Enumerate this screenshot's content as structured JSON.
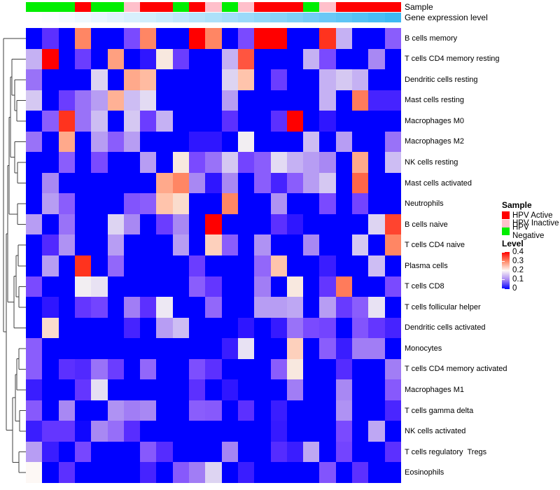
{
  "annotation_tracks": {
    "sample_label": "Sample",
    "gene_label": "Gene expression level",
    "sample_category_colors": {
      "HPV Active": "#FF0000",
      "HPV Inactive": "#FFC0CB",
      "HPV Negative": "#00EE00"
    },
    "sample_track": [
      "HPV Negative",
      "HPV Negative",
      "HPV Negative",
      "HPV Active",
      "HPV Negative",
      "HPV Negative",
      "HPV Inactive",
      "HPV Active",
      "HPV Active",
      "HPV Negative",
      "HPV Active",
      "HPV Inactive",
      "HPV Negative",
      "HPV Inactive",
      "HPV Active",
      "HPV Active",
      "HPV Active",
      "HPV Negative",
      "HPV Inactive",
      "HPV Active",
      "HPV Active",
      "HPV Active",
      "HPV Active"
    ],
    "gene_gradient": {
      "low_color": "#FEFEFF",
      "high_color": "#3EB9F3",
      "direction": "left-low-to-right-high"
    }
  },
  "legend": {
    "sample": {
      "title": "Sample",
      "entries": [
        {
          "label": "HPV Active",
          "color": "#FF0000"
        },
        {
          "label": "HPV Inactive",
          "color": "#FFC0CB"
        },
        {
          "label": "HPV Negative",
          "color": "#00EE00"
        }
      ]
    },
    "level": {
      "title": "Level",
      "ticks": [
        "0.4",
        "0.3",
        "0.2",
        "0.1",
        "0"
      ],
      "tick_values": [
        0.4,
        0.3,
        0.2,
        0.1,
        0
      ],
      "gradient_top_to_bottom": [
        "#FF0000",
        "#FF8866",
        "#FDF8F5",
        "#A888F3",
        "#0000FF"
      ]
    }
  },
  "chart_data": {
    "type": "heatmap",
    "title": "",
    "rows": [
      "B cells memory",
      "T cells CD4 memory resting",
      "Dendritic cells resting",
      "Mast cells resting",
      "Macrophages M0",
      "Macrophages M2",
      "NK cells resting",
      "Mast cells activated",
      "Neutrophils",
      "B cells naive",
      "T cells CD4 naive",
      "Plasma cells",
      "T cells CD8",
      "T cells follicular helper",
      "Dendritic cells activated",
      "Monocytes",
      "T cells CD4 memory activated",
      "Macrophages M1",
      "T cells gamma delta",
      "NK cells activated",
      "T cells regulatory  Tregs",
      "Eosinophils"
    ],
    "n_columns": 23,
    "column_labels_shown": false,
    "value_range": [
      0,
      0.4
    ],
    "values": [
      [
        0,
        0.05,
        0,
        0.3,
        0,
        0,
        0.07,
        0.3,
        0,
        0,
        0.4,
        0.3,
        0,
        0.07,
        0.4,
        0.4,
        0,
        0,
        0.37,
        0.12,
        0,
        0,
        0.08
      ],
      [
        0.12,
        0.4,
        0,
        0.06,
        0,
        0.28,
        0,
        0.03,
        0.21,
        0.06,
        0,
        0,
        0.12,
        0.35,
        0,
        0,
        0,
        0.12,
        0.07,
        0,
        0,
        0.1,
        0
      ],
      [
        0.09,
        0,
        0,
        0,
        0.15,
        0,
        0.27,
        0.25,
        0,
        0,
        0,
        0,
        0.15,
        0.24,
        0,
        0.06,
        0,
        0,
        0.12,
        0.14,
        0.12,
        0,
        0
      ],
      [
        0.14,
        0,
        0.06,
        0.09,
        0.11,
        0.26,
        0.13,
        0.16,
        0,
        0,
        0,
        0,
        0.11,
        0,
        0,
        0,
        0,
        0,
        0.12,
        0,
        0.31,
        0.04,
        0.04
      ],
      [
        0,
        0.08,
        0.37,
        0.09,
        0.13,
        0,
        0.14,
        0.06,
        0.12,
        0,
        0,
        0,
        0.05,
        0,
        0,
        0.05,
        0.4,
        0,
        0.03,
        0,
        0,
        0,
        0
      ],
      [
        0.09,
        0,
        0.27,
        0,
        0.11,
        0.08,
        0.11,
        0,
        0,
        0,
        0.03,
        0.03,
        0,
        0.19,
        0,
        0,
        0,
        0.13,
        0,
        0.11,
        0,
        0,
        0.09
      ],
      [
        0,
        0,
        0.08,
        0,
        0.07,
        0,
        0,
        0.11,
        0,
        0.21,
        0.07,
        0.09,
        0.14,
        0.065,
        0.08,
        0.16,
        0.12,
        0.11,
        0.1,
        0,
        0.27,
        0,
        0.13
      ],
      [
        0,
        0.1,
        0,
        0,
        0,
        0,
        0,
        0,
        0.27,
        0.3,
        0.1,
        0.03,
        0.1,
        0,
        0.08,
        0.04,
        0.08,
        0.11,
        0.14,
        0,
        0.33,
        0,
        0
      ],
      [
        0,
        0.11,
        0.08,
        0,
        0,
        0,
        0.075,
        0.08,
        0.24,
        0.22,
        0,
        0,
        0.3,
        0,
        0,
        0.105,
        0,
        0,
        0.07,
        0,
        0.065,
        0,
        0
      ],
      [
        0.11,
        0,
        0.09,
        0,
        0,
        0.15,
        0.1,
        0,
        0.06,
        0.1,
        0,
        0.4,
        0,
        0,
        0,
        0.05,
        0.03,
        0,
        0,
        0,
        0,
        0.15,
        0.36
      ],
      [
        0,
        0.045,
        0.105,
        0,
        0,
        0.11,
        0,
        0,
        0,
        0.11,
        0,
        0.23,
        0.08,
        0,
        0.105,
        0,
        0,
        0.1,
        0,
        0,
        0.14,
        0,
        0.3
      ],
      [
        0,
        0.11,
        0,
        0.37,
        0,
        0.085,
        0,
        0,
        0,
        0,
        0.06,
        0,
        0,
        0,
        0.085,
        0.24,
        0,
        0,
        0.035,
        0,
        0,
        0.13,
        0
      ],
      [
        0.07,
        0,
        0,
        0.19,
        0.17,
        0,
        0,
        0,
        0,
        0,
        0.08,
        0.055,
        0,
        0,
        0.095,
        0,
        0.21,
        0,
        0.055,
        0.31,
        0,
        0,
        0.07
      ],
      [
        0,
        0.03,
        0,
        0.055,
        0.065,
        0,
        0.095,
        0.05,
        0.18,
        0,
        0,
        0.085,
        0,
        0,
        0.11,
        0.11,
        0.115,
        0,
        0.11,
        0.058,
        0.08,
        0.17,
        0
      ],
      [
        0,
        0.22,
        0,
        0,
        0,
        0,
        0.04,
        0,
        0.11,
        0.13,
        0,
        0,
        0,
        0.03,
        0,
        0.033,
        0.09,
        0.07,
        0.065,
        0,
        0.075,
        0.055,
        0.04
      ],
      [
        0.08,
        0,
        0,
        0,
        0,
        0,
        0,
        0,
        0,
        0,
        0,
        0,
        0.035,
        0.17,
        0,
        0,
        0.23,
        0,
        0.08,
        0.035,
        0.095,
        0.095,
        0
      ],
      [
        0.08,
        0,
        0.05,
        0.045,
        0.09,
        0.06,
        0,
        0.085,
        0,
        0,
        0.072,
        0.05,
        0,
        0,
        0,
        0.08,
        0.21,
        0,
        0,
        0.047,
        0,
        0,
        0.095
      ],
      [
        0.035,
        0,
        0,
        0.055,
        0.165,
        0,
        0,
        0,
        0,
        0,
        0.05,
        0,
        0.03,
        0,
        0,
        0,
        0.095,
        0,
        0,
        0.1,
        0,
        0,
        0.078
      ],
      [
        0.078,
        0,
        0.1,
        0,
        0,
        0.105,
        0.095,
        0.1,
        0,
        0,
        0.08,
        0.078,
        0,
        0.05,
        0,
        0.035,
        0,
        0,
        0,
        0.105,
        0,
        0,
        0.042
      ],
      [
        0.035,
        0.055,
        0.055,
        0.01,
        0.1,
        0.088,
        0.048,
        0,
        0,
        0,
        0,
        0,
        0,
        0,
        0,
        0.033,
        0,
        0,
        0,
        0.07,
        0,
        0.115,
        0
      ],
      [
        0.11,
        0.035,
        0,
        0.068,
        0,
        0,
        0,
        0.078,
        0.047,
        0,
        0,
        0,
        0.098,
        0,
        0,
        0.047,
        0.035,
        0.115,
        0,
        0.065,
        0,
        0,
        0.05
      ],
      [
        0.2,
        0,
        0.05,
        0,
        0,
        0,
        0,
        0.04,
        0,
        0.078,
        0.095,
        0.15,
        0,
        0.035,
        0,
        0,
        0,
        0,
        0.075,
        0,
        0.05,
        0,
        0
      ]
    ],
    "colormap_stops": [
      [
        0.0,
        [
          0,
          0,
          255
        ]
      ],
      [
        0.03,
        [
          47,
          22,
          255
        ]
      ],
      [
        0.05,
        [
          92,
          48,
          255
        ]
      ],
      [
        0.07,
        [
          122,
          74,
          255
        ]
      ],
      [
        0.085,
        [
          146,
          103,
          250
        ]
      ],
      [
        0.1,
        [
          168,
          136,
          243
        ]
      ],
      [
        0.12,
        [
          197,
          177,
          243
        ]
      ],
      [
        0.15,
        [
          221,
          212,
          242
        ]
      ],
      [
        0.17,
        [
          232,
          226,
          243
        ]
      ],
      [
        0.19,
        [
          242,
          238,
          242
        ]
      ],
      [
        0.2,
        [
          253,
          248,
          245
        ]
      ],
      [
        0.21,
        [
          248,
          232,
          223
        ]
      ],
      [
        0.22,
        [
          250,
          220,
          205
        ]
      ],
      [
        0.24,
        [
          255,
          196,
          172
        ]
      ],
      [
        0.26,
        [
          255,
          177,
          149
        ]
      ],
      [
        0.28,
        [
          255,
          160,
          128
        ]
      ],
      [
        0.3,
        [
          255,
          134,
          100
        ]
      ],
      [
        0.33,
        [
          255,
          102,
          72
        ]
      ],
      [
        0.35,
        [
          255,
          85,
          64
        ]
      ],
      [
        0.37,
        [
          255,
          51,
          30
        ]
      ],
      [
        0.4,
        [
          255,
          0,
          0
        ]
      ]
    ],
    "row_dendrogram": {
      "line_color": "#3F3F3F",
      "tree": {
        "x": 5,
        "c": [
          {
            "leaf": 1
          },
          {
            "x": 9,
            "c": [
              {
                "x": 11,
                "c": [
                  {
                    "x": 13,
                    "c": [
                      {
                        "x": 15,
                        "c": [
                          {
                            "x": 17,
                            "c": [
                              {
                                "leaf": 2
                              },
                              {
                                "x": 21,
                                "c": [
                                  {
                                    "leaf": 3
                                  },
                                  {
                                    "x": 24,
                                    "c": [
                                      {
                                        "leaf": 4
                                      },
                                      {
                                        "leaf": 5
                                      }
                                    ]
                                  }
                                ]
                              }
                            ]
                          },
                          {
                            "x": 21,
                            "c": [
                              {
                                "leaf": 6
                              },
                              {
                                "x": 25,
                                "c": [
                                  {
                                    "leaf": 7
                                  },
                                  {
                                    "leaf": 8
                                  }
                                ]
                              }
                            ]
                          }
                        ]
                      },
                      {
                        "x": 25,
                        "c": [
                          {
                            "leaf": 9
                          },
                          {
                            "leaf": 10
                          }
                        ]
                      }
                    ]
                  },
                  {
                    "x": 20,
                    "c": [
                      {
                        "x": 23,
                        "c": [
                          {
                            "x": 26,
                            "c": [
                              {
                                "leaf": 11
                              },
                              {
                                "leaf": 12
                              }
                            ]
                          },
                          {
                            "x": 27,
                            "c": [
                              {
                                "leaf": 13
                              },
                              {
                                "leaf": 14
                              }
                            ]
                          }
                        ]
                      },
                      {
                        "leaf": 15
                      }
                    ]
                  }
                ]
              },
              {
                "x": 18,
                "c": [
                  {
                    "x": 22,
                    "c": [
                      {
                        "x": 24,
                        "c": [
                          {
                            "x": 27,
                            "c": [
                              {
                                "leaf": 16
                              },
                              {
                                "leaf": 17
                              }
                            ]
                          },
                          {
                            "leaf": 18
                          }
                        ]
                      },
                      {
                        "x": 28,
                        "c": [
                          {
                            "leaf": 19
                          },
                          {
                            "leaf": 20
                          }
                        ]
                      }
                    ]
                  },
                  {
                    "x": 27,
                    "c": [
                      {
                        "leaf": 21
                      },
                      {
                        "leaf": 22
                      }
                    ]
                  }
                ]
              }
            ]
          }
        ]
      }
    },
    "legend_position": "right",
    "grid": false
  }
}
